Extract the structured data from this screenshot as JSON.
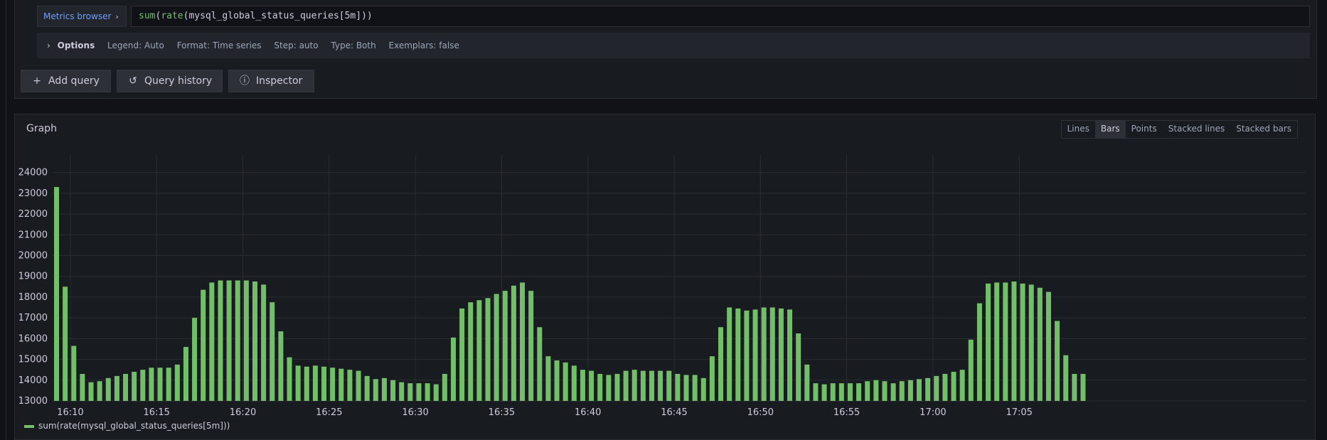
{
  "query": {
    "metrics_browser_label": "Metrics browser",
    "metrics_chevron": "›",
    "expr_fn1": "sum",
    "expr_fn2": "rate",
    "expr_rest": "(mysql_global_status_queries[5m]))",
    "expr_open": "("
  },
  "options": {
    "chevron": "›",
    "title": "Options",
    "legend": "Legend: Auto",
    "format": "Format: Time series",
    "step": "Step: auto",
    "type": "Type: Both",
    "exemplars": "Exemplars: false"
  },
  "actions": {
    "add_query": "Add query",
    "add_icon": "+",
    "query_history": "Query history",
    "history_icon": "↺",
    "inspector": "Inspector",
    "inspector_icon": "ⓘ"
  },
  "graph": {
    "title": "Graph",
    "modes": [
      "Lines",
      "Bars",
      "Points",
      "Stacked lines",
      "Stacked bars"
    ],
    "active_mode": "Bars",
    "legend_label": "sum(rate(mysql_global_status_queries[5m]))",
    "bar_color": "#73bf69"
  },
  "chart_data": {
    "type": "bar",
    "title": "",
    "xlabel": "",
    "ylabel": "",
    "ylim": [
      13000,
      24500
    ],
    "yticks": [
      13000,
      14000,
      15000,
      16000,
      17000,
      18000,
      19000,
      20000,
      21000,
      22000,
      23000,
      24000
    ],
    "xticks": [
      "16:10",
      "16:15",
      "16:20",
      "16:25",
      "16:30",
      "16:35",
      "16:40",
      "16:45",
      "16:50",
      "16:55",
      "17:00",
      "17:05"
    ],
    "grid": true,
    "series": [
      {
        "name": "sum(rate(mysql_global_status_queries[5m]))",
        "values": [
          23300,
          18500,
          15650,
          14300,
          13900,
          13950,
          14100,
          14200,
          14300,
          14400,
          14500,
          14600,
          14600,
          14600,
          14750,
          15600,
          17000,
          18350,
          18700,
          18800,
          18800,
          18800,
          18800,
          18750,
          18600,
          17750,
          16350,
          15100,
          14700,
          14650,
          14700,
          14650,
          14600,
          14550,
          14500,
          14450,
          14200,
          14050,
          14100,
          14000,
          13900,
          13850,
          13850,
          13850,
          13800,
          14300,
          16050,
          17450,
          17750,
          17850,
          17950,
          18150,
          18300,
          18550,
          18700,
          18300,
          16550,
          15150,
          14950,
          14850,
          14700,
          14500,
          14450,
          14300,
          14250,
          14300,
          14450,
          14500,
          14450,
          14450,
          14450,
          14450,
          14300,
          14250,
          14250,
          14100,
          15150,
          16550,
          17500,
          17450,
          17350,
          17400,
          17500,
          17500,
          17450,
          17400,
          16250,
          14750,
          13850,
          13800,
          13850,
          13850,
          13850,
          13850,
          13950,
          14000,
          13950,
          13850,
          13950,
          14000,
          14050,
          14100,
          14200,
          14300,
          14400,
          14500,
          15950,
          17700,
          18650,
          18700,
          18700,
          18750,
          18650,
          18600,
          18450,
          18250,
          16850,
          15200,
          14300,
          14300
        ]
      }
    ]
  }
}
